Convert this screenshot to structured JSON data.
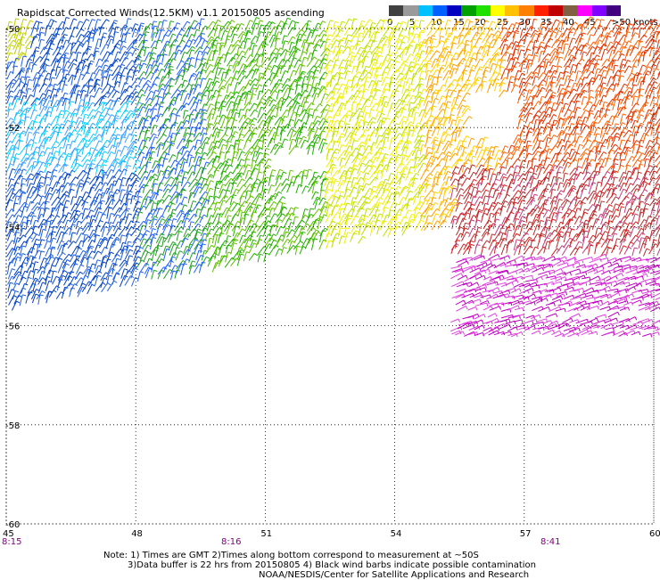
{
  "title": "Rapidscat Corrected Winds(12.5KM) v1.1 20150805 ascending",
  "colorbar": {
    "colors": [
      "#404040",
      "#9a9a9a",
      "#00c0ff",
      "#0060ff",
      "#0000c0",
      "#00a000",
      "#20e000",
      "#ffff00",
      "#ffc000",
      "#ff8000",
      "#ff2000",
      "#c00000",
      "#806040",
      "#ff00ff",
      "#8000ff",
      "#400080"
    ],
    "labels": [
      "0",
      "5",
      "10",
      "15",
      "20",
      "25",
      "30",
      "35",
      "40",
      "45",
      ">50 knots"
    ]
  },
  "axes": {
    "lon_ticks": [
      "45",
      "48",
      "51",
      "54",
      "57",
      "60"
    ],
    "lat_ticks": [
      "-50",
      "-52",
      "-54",
      "-56",
      "-58",
      "-60"
    ],
    "times": [
      "8:15",
      "8:16",
      "8:41"
    ]
  },
  "notes": {
    "line1": "Note: 1) Times are GMT 2)Times along bottom correspond to measurement at ~50S",
    "line2": "3)Data buffer is 22 hrs from 20150805 4) Black wind barbs indicate possible contamination",
    "line3": "NOAA/NESDIS/Center for Satellite Applications and Research"
  }
}
